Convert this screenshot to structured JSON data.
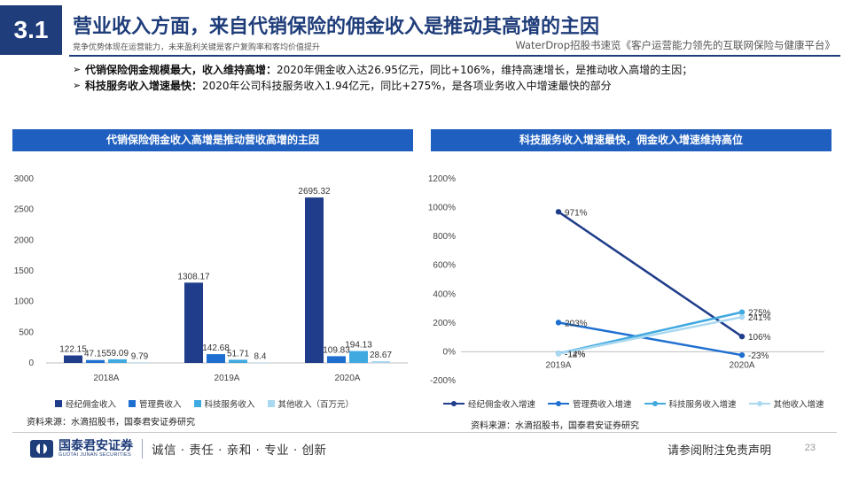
{
  "header": {
    "section": "3.1",
    "title": "营业收入方面，来自代销保险的佣金收入是推动其高增的主因",
    "subtitle": "竞争优势体现在运营能力，未来盈利关键是客户复购率和客均价值提升",
    "report_ref": "WaterDrop招股书速览《客户运营能力领先的互联网保险与健康平台》"
  },
  "bullets": [
    {
      "bold": "代销保险佣金规模最大，收入维持高增：",
      "text": "2020年佣金收入达26.95亿元，同比+106%，维持高速增长，是推动收入高增的主因；"
    },
    {
      "bold": "科技服务收入增速最快：",
      "text": "2020年公司科技服务收入1.94亿元，同比+275%，是各项业务收入中增速最快的部分"
    }
  ],
  "left_panel": {
    "header": "代销保险佣金收入高增是推动营收高增的主因",
    "source": "资料来源：水滴招股书，国泰君安证券研究"
  },
  "right_panel": {
    "header": "科技服务收入增速最快，佣金收入增速维持高位",
    "source": "资料来源：水滴招股书，国泰君安证券研究"
  },
  "chart_data": [
    {
      "type": "bar",
      "categories": [
        "2018A",
        "2019A",
        "2020A"
      ],
      "series": [
        {
          "name": "经纪佣金收入",
          "color": "#1f3d8a",
          "values": [
            122.15,
            1308.17,
            2695.32
          ]
        },
        {
          "name": "管理费收入",
          "color": "#1f6fd1",
          "values": [
            47.15,
            142.68,
            109.83
          ]
        },
        {
          "name": "科技服务收入",
          "color": "#3fa9e0",
          "values": [
            59.09,
            51.71,
            194.13
          ]
        },
        {
          "name": "其他收入（百万元）",
          "color": "#a9d8f0",
          "values": [
            9.79,
            8.4,
            28.67
          ]
        }
      ],
      "data_labels": [
        [
          "122.15",
          "1308.17",
          "2695.32"
        ],
        [
          "47.15",
          "142.68",
          "109.83"
        ],
        [
          "59.09",
          "51.71",
          "194.13"
        ],
        [
          "9.79",
          "8.4",
          "28.67"
        ]
      ],
      "ylim": [
        0,
        3000
      ],
      "yticks": [
        0,
        500,
        1000,
        1500,
        2000,
        2500,
        3000
      ],
      "title": "",
      "xlabel": "",
      "ylabel": "",
      "legend": "bottom"
    },
    {
      "type": "line",
      "x": [
        "2019A",
        "2020A"
      ],
      "series": [
        {
          "name": "经纪佣金收入增速",
          "color": "#1f3d8a",
          "values": [
            971,
            106
          ],
          "labels": [
            "971%",
            "106%"
          ]
        },
        {
          "name": "管理费收入增速",
          "color": "#1f6fd1",
          "values": [
            203,
            -23
          ],
          "labels": [
            "203%",
            "-23%"
          ]
        },
        {
          "name": "科技服务收入增速",
          "color": "#3fa9e0",
          "values": [
            -12,
            275
          ],
          "labels": [
            "-12%",
            "275%"
          ]
        },
        {
          "name": "其他收入增速",
          "color": "#a9d8f0",
          "values": [
            -14,
            241
          ],
          "labels": [
            "-14%",
            "241%"
          ]
        }
      ],
      "ylim": [
        -200,
        1200
      ],
      "yticks": [
        "1200%",
        "1000%",
        "800%",
        "600%",
        "400%",
        "200%",
        "0%",
        "-200%"
      ],
      "title": "",
      "xlabel": "",
      "ylabel": "",
      "legend": "bottom"
    }
  ],
  "footer": {
    "logo_name": "国泰君安证券",
    "logo_en": "GUOTAI JUNAN SECURITIES",
    "motto": "诚信 · 责任 · 亲和 · 专业 · 创新",
    "disclaimer": "请参阅附注免责声明",
    "page": "23"
  }
}
